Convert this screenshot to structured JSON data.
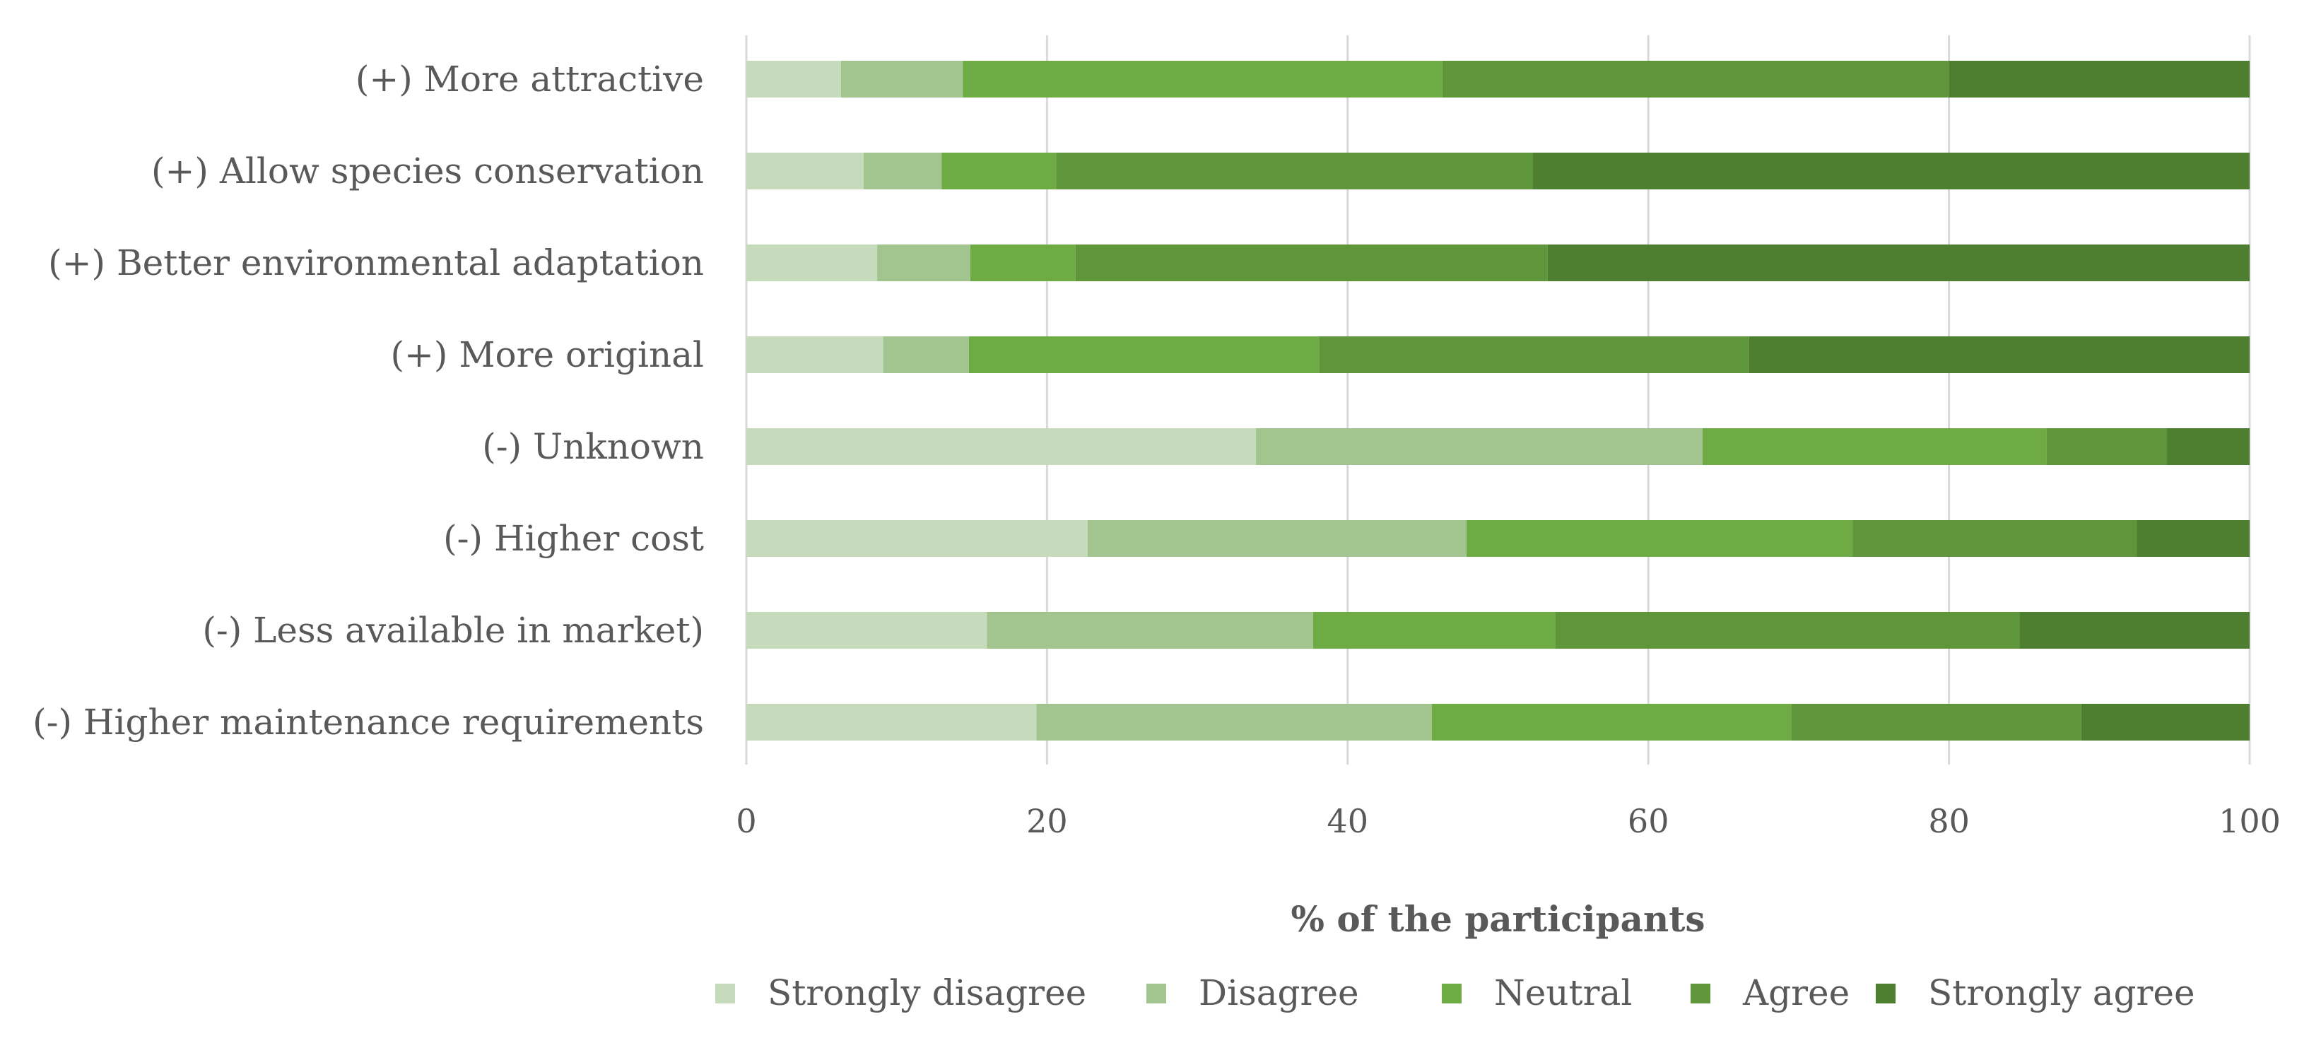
{
  "chart_data": {
    "type": "bar",
    "orientation": "horizontal",
    "stacked": true,
    "title": "",
    "xlabel": "% of the participants",
    "ylabel": "",
    "xlim": [
      0,
      100
    ],
    "xticks": [
      0,
      20,
      40,
      60,
      80,
      100
    ],
    "grid": true,
    "legend_position": "bottom",
    "categories": [
      "(+) More attractive",
      "(+) Allow species conservation",
      "(+) Better environmental adaptation",
      "(+) More original",
      "(-) Unknown",
      "(-) Higher cost",
      "(-) Less available in market)",
      "(-) Higher maintenance requirements"
    ],
    "series": [
      {
        "name": "Strongly disagree",
        "color": "#c5dbbb",
        "values": [
          6.3,
          7.8,
          8.7,
          9.1,
          33.9,
          22.7,
          16.0,
          19.3
        ]
      },
      {
        "name": "Disagree",
        "color": "#a2c58f",
        "values": [
          8.1,
          5.2,
          6.2,
          5.7,
          29.7,
          25.2,
          21.7,
          26.3
        ]
      },
      {
        "name": "Neutral",
        "color": "#6fab45",
        "values": [
          31.9,
          7.6,
          7.0,
          23.3,
          22.9,
          25.7,
          16.1,
          23.9
        ]
      },
      {
        "name": "Agree",
        "color": "#5f963b",
        "values": [
          33.7,
          31.7,
          31.4,
          28.6,
          8.0,
          18.9,
          30.9,
          19.3
        ]
      },
      {
        "name": "Strongly agree",
        "color": "#4e7f31",
        "values": [
          20.0,
          47.7,
          46.7,
          33.3,
          5.5,
          7.5,
          15.3,
          11.2
        ]
      }
    ]
  }
}
